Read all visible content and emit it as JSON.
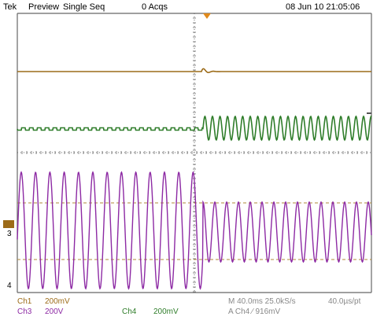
{
  "header": {
    "brand": "Tek",
    "mode": "Preview",
    "acq_mode": "Single Seq",
    "acq_count": "0 Acqs",
    "datetime": "08 Jun 10 21:05:06"
  },
  "channels": {
    "ch1": {
      "label": "Ch1",
      "scale": "200mV",
      "color": "#9c6b18"
    },
    "ch3": {
      "label": "Ch3",
      "scale": "200V",
      "color": "#8d2aa4"
    },
    "ch4": {
      "label": "Ch4",
      "scale": "200mV",
      "color": "#2f7d2a"
    }
  },
  "acquisition": {
    "timebase": "M 40.0ms 25.0kS/s",
    "sample_interval": "40.0µs/pt",
    "trigger": "A Ch4 ∕ 916mV"
  },
  "markers": {
    "ch3_ref": "3",
    "ch4_ref": "4"
  },
  "colors": {
    "background": "#ffffff",
    "grid": "#666666",
    "cursor": "#b08a3a"
  }
}
